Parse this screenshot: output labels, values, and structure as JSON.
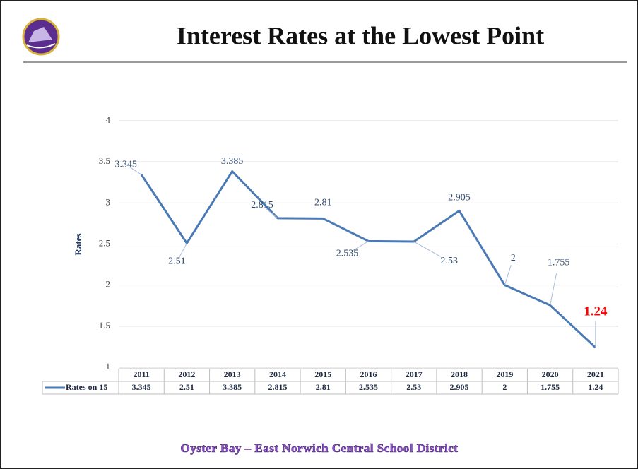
{
  "chart_data": {
    "type": "line",
    "title": "Interest Rates at the Lowest Point",
    "footer": "Oyster Bay – East Norwich Central School District",
    "y_label": "Rates",
    "categories": [
      "2011",
      "2012",
      "2013",
      "2014",
      "2015",
      "2016",
      "2017",
      "2018",
      "2019",
      "2020",
      "2021"
    ],
    "series": [
      {
        "name": "Rates on 15",
        "color": "#4a7ab5",
        "values": [
          3.345,
          2.51,
          3.385,
          2.815,
          2.81,
          2.535,
          2.53,
          2.905,
          2,
          1.755,
          1.24
        ]
      }
    ],
    "ylim": [
      1,
      4
    ],
    "yticks": [
      1,
      1.5,
      2,
      2.5,
      3,
      3.5,
      4
    ],
    "grid": true,
    "data_table": true
  }
}
